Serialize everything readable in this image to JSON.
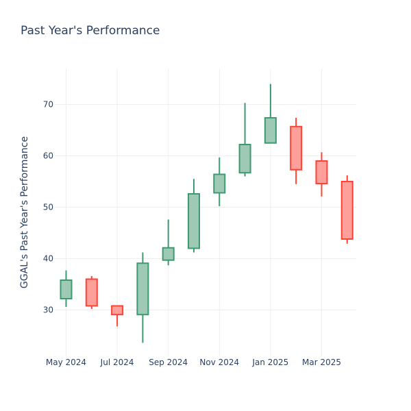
{
  "chart_data": {
    "type": "candlestick",
    "title": "Past Year's Performance",
    "xlabel": "",
    "ylabel": "GGAL's Past Year's Performance",
    "ylim": [
      21,
      77
    ],
    "yticks": [
      30,
      40,
      50,
      60,
      70
    ],
    "xticks": [
      "May 2024",
      "Jul 2024",
      "Sep 2024",
      "Nov 2024",
      "Jan 2025",
      "Mar 2025"
    ],
    "grid": true,
    "colors": {
      "increasing_line": "#3d9970",
      "increasing_fill": "#9ecab5",
      "decreasing_line": "#ff4136",
      "decreasing_fill": "#ff9f9a"
    },
    "candles": [
      {
        "x": "2024-05",
        "open": 32.2,
        "high": 37.7,
        "low": 30.6,
        "close": 35.8
      },
      {
        "x": "2024-06",
        "open": 36.0,
        "high": 36.6,
        "low": 30.2,
        "close": 30.8
      },
      {
        "x": "2024-07",
        "open": 30.8,
        "high": 30.8,
        "low": 26.8,
        "close": 29.1
      },
      {
        "x": "2024-08",
        "open": 29.1,
        "high": 41.2,
        "low": 23.6,
        "close": 39.1
      },
      {
        "x": "2024-09",
        "open": 39.7,
        "high": 47.6,
        "low": 38.7,
        "close": 42.1
      },
      {
        "x": "2024-10",
        "open": 42.0,
        "high": 55.5,
        "low": 41.2,
        "close": 52.6
      },
      {
        "x": "2024-11",
        "open": 52.8,
        "high": 59.7,
        "low": 50.2,
        "close": 56.4
      },
      {
        "x": "2024-12",
        "open": 56.7,
        "high": 70.3,
        "low": 56.0,
        "close": 62.2
      },
      {
        "x": "2025-01",
        "open": 62.5,
        "high": 74.0,
        "low": 62.5,
        "close": 67.4
      },
      {
        "x": "2025-02",
        "open": 65.7,
        "high": 67.4,
        "low": 54.5,
        "close": 57.3
      },
      {
        "x": "2025-03",
        "open": 59.0,
        "high": 60.7,
        "low": 52.1,
        "close": 54.6
      },
      {
        "x": "2025-04",
        "open": 55.0,
        "high": 56.2,
        "low": 42.9,
        "close": 43.8
      }
    ]
  }
}
